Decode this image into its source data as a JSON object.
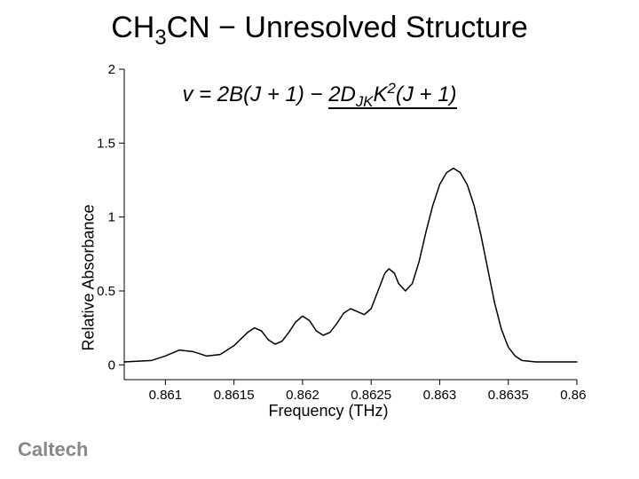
{
  "title_parts": {
    "mol_pre": "CH",
    "mol_sub": "3",
    "mol_post": "CN",
    "sep": " − ",
    "rest": "Unresolved Structure"
  },
  "title_fontsize": 34,
  "formula_parts": {
    "a": "v = 2B(J + 1) − ",
    "u1": "2D",
    "usub": "JK",
    "u2": "K",
    "usup": "2",
    "u3": "(J + 1)"
  },
  "formula_fontsize": 24,
  "chart": {
    "type": "line",
    "xlabel": "Frequency (THz)",
    "ylabel": "Relative Absorbance",
    "label_fontsize": 18,
    "tick_fontsize": 15,
    "xlim": [
      0.8607,
      0.864
    ],
    "ylim": [
      -0.1,
      2.0
    ],
    "xticks": [
      0.861,
      0.8615,
      0.862,
      0.8625,
      0.863,
      0.8635,
      0.864
    ],
    "xtick_labels": [
      "0.861",
      "0.8615",
      "0.862",
      "0.8625",
      "0.863",
      "0.8635",
      "0.864"
    ],
    "yticks": [
      0,
      0.5,
      1,
      1.5,
      2
    ],
    "ytick_labels": [
      "0",
      "0.5",
      "1",
      "1.5",
      "2"
    ],
    "line_color": "#000000",
    "line_width": 1.5,
    "axis_color": "#000000",
    "axis_width": 1,
    "tick_len": 6,
    "background_color": "#ffffff",
    "series": [
      [
        0.8607,
        0.02
      ],
      [
        0.8609,
        0.03
      ],
      [
        0.861,
        0.06
      ],
      [
        0.8611,
        0.1
      ],
      [
        0.8612,
        0.09
      ],
      [
        0.8613,
        0.06
      ],
      [
        0.8614,
        0.07
      ],
      [
        0.8615,
        0.13
      ],
      [
        0.8616,
        0.22
      ],
      [
        0.86165,
        0.25
      ],
      [
        0.8617,
        0.23
      ],
      [
        0.86175,
        0.17
      ],
      [
        0.8618,
        0.14
      ],
      [
        0.86185,
        0.16
      ],
      [
        0.8619,
        0.22
      ],
      [
        0.86195,
        0.29
      ],
      [
        0.862,
        0.33
      ],
      [
        0.86205,
        0.3
      ],
      [
        0.8621,
        0.23
      ],
      [
        0.86215,
        0.2
      ],
      [
        0.8622,
        0.22
      ],
      [
        0.86225,
        0.28
      ],
      [
        0.8623,
        0.35
      ],
      [
        0.86235,
        0.38
      ],
      [
        0.8624,
        0.36
      ],
      [
        0.86245,
        0.34
      ],
      [
        0.8625,
        0.38
      ],
      [
        0.86255,
        0.5
      ],
      [
        0.8626,
        0.62
      ],
      [
        0.86263,
        0.65
      ],
      [
        0.86267,
        0.62
      ],
      [
        0.8627,
        0.55
      ],
      [
        0.86275,
        0.5
      ],
      [
        0.8628,
        0.55
      ],
      [
        0.86285,
        0.7
      ],
      [
        0.8629,
        0.9
      ],
      [
        0.86295,
        1.08
      ],
      [
        0.863,
        1.22
      ],
      [
        0.86305,
        1.3
      ],
      [
        0.8631,
        1.33
      ],
      [
        0.86315,
        1.3
      ],
      [
        0.8632,
        1.22
      ],
      [
        0.86325,
        1.08
      ],
      [
        0.8633,
        0.88
      ],
      [
        0.86335,
        0.65
      ],
      [
        0.8634,
        0.42
      ],
      [
        0.86345,
        0.24
      ],
      [
        0.8635,
        0.12
      ],
      [
        0.86355,
        0.06
      ],
      [
        0.8636,
        0.03
      ],
      [
        0.8637,
        0.02
      ],
      [
        0.8638,
        0.02
      ],
      [
        0.864,
        0.02
      ]
    ]
  },
  "logo_text": "Caltech",
  "logo_color": "#9a9a9a"
}
